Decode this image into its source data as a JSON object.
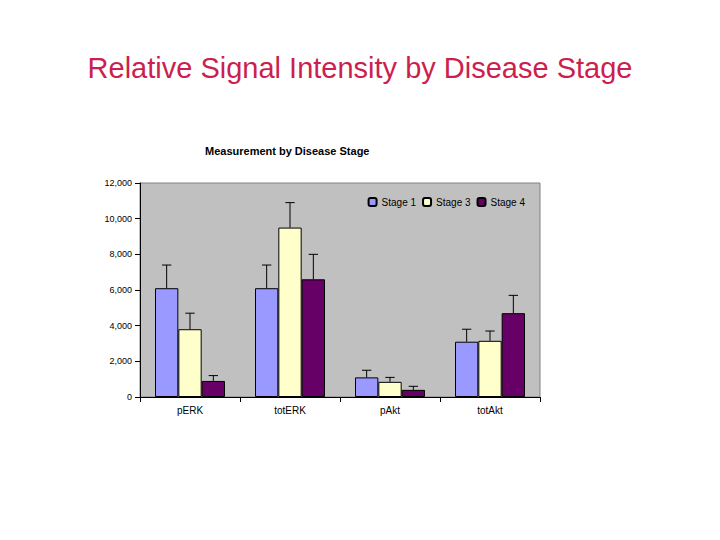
{
  "header": {
    "title": "Relative Signal Intensity by Disease Stage"
  },
  "chart_data": {
    "type": "bar",
    "title": "Measurement by Disease Stage",
    "categories": [
      "pERK",
      "totERK",
      "pAkt",
      "totAkt"
    ],
    "series": [
      {
        "name": "Stage 1",
        "color": "#9999ff",
        "values": [
          6100,
          6100,
          1100,
          3100
        ],
        "errors": [
          1300,
          1300,
          400,
          700
        ]
      },
      {
        "name": "Stage 3",
        "color": "#ffffcc",
        "values": [
          3800,
          9500,
          850,
          3150
        ],
        "errors": [
          900,
          1400,
          250,
          550
        ]
      },
      {
        "name": "Stage 4",
        "color": "#660066",
        "values": [
          900,
          6600,
          400,
          4700
        ],
        "errors": [
          300,
          1400,
          200,
          1000
        ]
      }
    ],
    "ylim": [
      0,
      12000
    ],
    "yticks": [
      0,
      2000,
      4000,
      6000,
      8000,
      10000,
      12000
    ],
    "grid": false,
    "legend": "upper right"
  }
}
